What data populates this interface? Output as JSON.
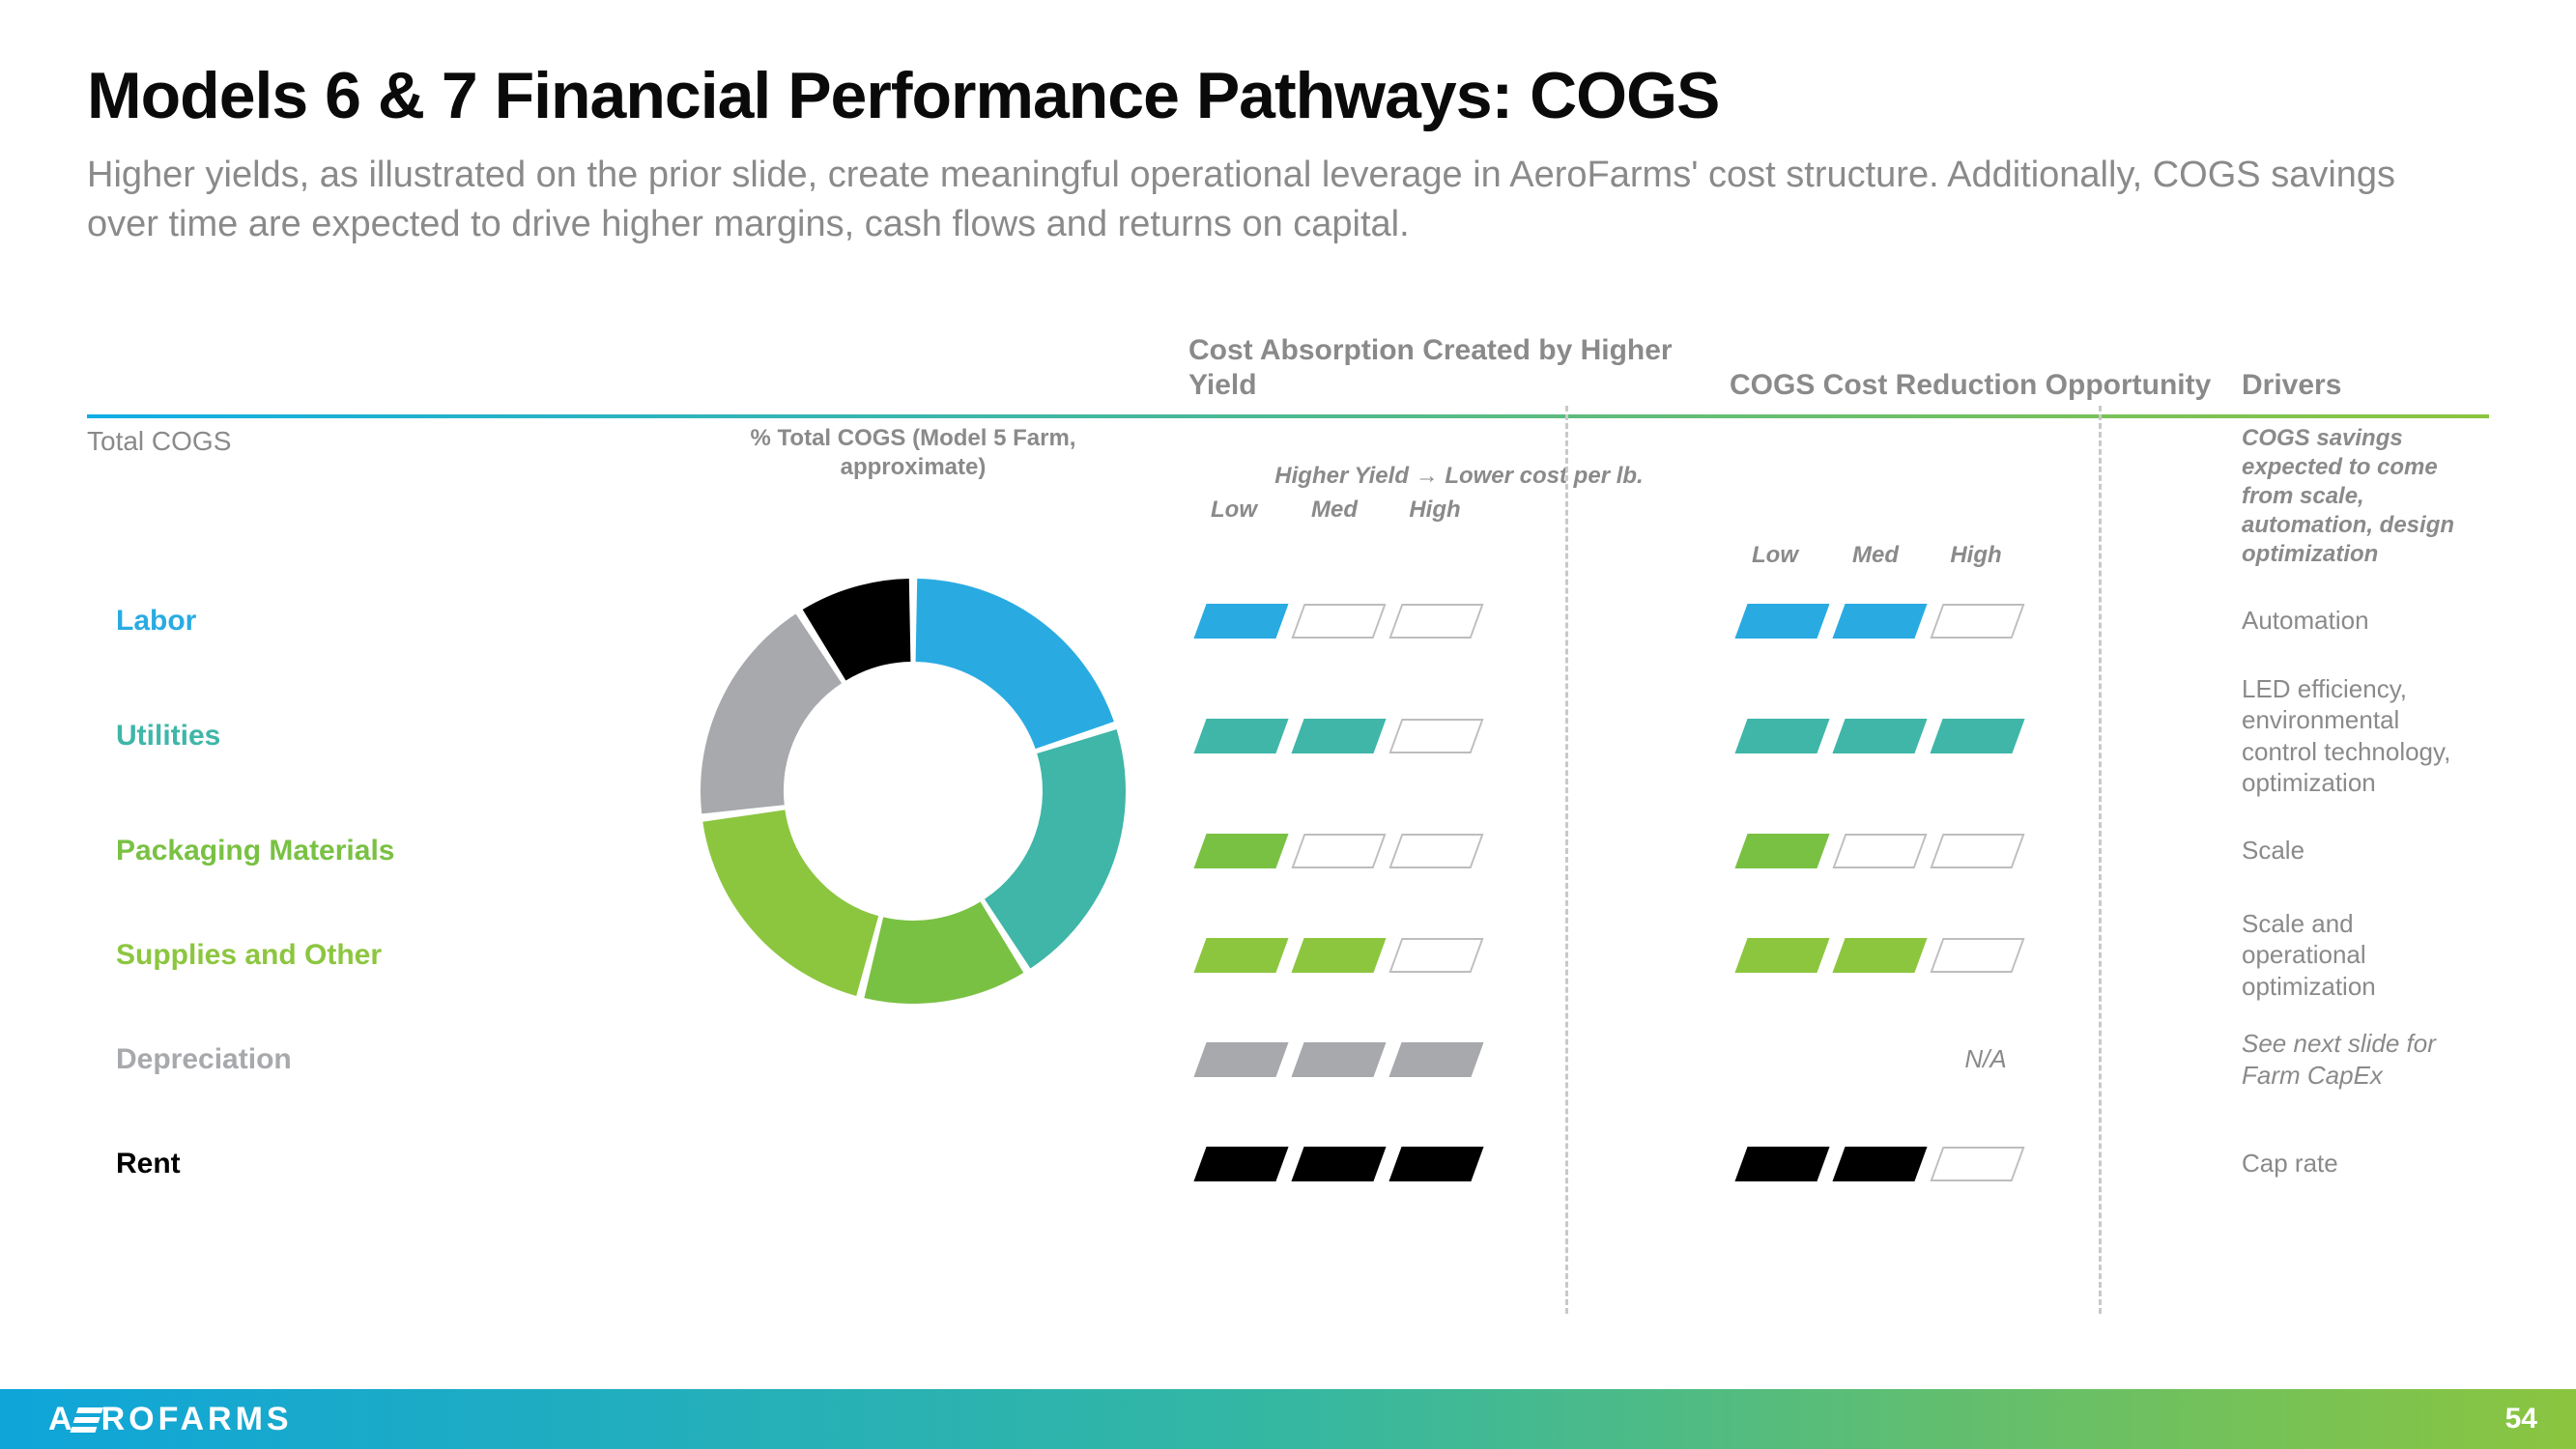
{
  "title": "Models 6 & 7 Financial Performance Pathways: COGS",
  "subtitle": "Higher yields, as illustrated on the prior slide, create meaningful operational leverage in AeroFarms' cost structure. Additionally, COGS savings over time are expected to drive higher margins, cash flows and returns on capital.",
  "columns": {
    "total_cogs": "Total COGS",
    "pct_note": "% Total COGS (Model 5 Farm, approximate)",
    "absorption_head": "Cost Absorption Created by Higher Yield",
    "absorption_sub": "Higher Yield → Lower cost per lb.",
    "reduction_head": "COGS Cost Reduction Opportunity",
    "drivers_head": "Drivers",
    "drivers_sub": "COGS savings expected to come from scale,  automation, design optimization",
    "lmh": {
      "low": "Low",
      "med": "Med",
      "high": "High"
    }
  },
  "divider_gradient": {
    "from": "#10aee5",
    "to": "#8bc53f"
  },
  "categories": [
    {
      "key": "labor",
      "label": "Labor",
      "color": "#29abe2",
      "absorption": 1,
      "reduction": 2,
      "driver": "Automation"
    },
    {
      "key": "utilities",
      "label": "Utilities",
      "color": "#3fb6a8",
      "absorption": 2,
      "reduction": 3,
      "driver": "LED efficiency, environmental control technology, optimization"
    },
    {
      "key": "packaging",
      "label": "Packaging Materials",
      "color": "#79c143",
      "absorption": 1,
      "reduction": 1,
      "driver": "Scale"
    },
    {
      "key": "supplies",
      "label": "Supplies and Other",
      "color": "#8cc63f",
      "absorption": 2,
      "reduction": 2,
      "driver": "Scale and operational optimization"
    },
    {
      "key": "deprec",
      "label": "Depreciation",
      "color": "#a7a9ac",
      "absorption": 3,
      "reduction": "na",
      "driver": "See next slide for Farm CapEx",
      "driver_italic": true
    },
    {
      "key": "rent",
      "label": "Rent",
      "color": "#000000",
      "absorption": 3,
      "reduction": 2,
      "driver": "Cap rate"
    }
  ],
  "na_text": "N/A",
  "donut": {
    "size": 440,
    "thickness": 86,
    "gap_deg": 2.2,
    "start_deg": -90,
    "background": "#ffffff",
    "slices": [
      {
        "key": "labor",
        "pct": 20,
        "color": "#29abe2"
      },
      {
        "key": "utilities",
        "pct": 21,
        "color": "#3fb6a8"
      },
      {
        "key": "packaging",
        "pct": 13,
        "color": "#79c143"
      },
      {
        "key": "supplies",
        "pct": 19,
        "color": "#8cc63f"
      },
      {
        "key": "deprec",
        "pct": 18,
        "color": "#a7a9ac"
      },
      {
        "key": "rent",
        "pct": 9,
        "color": "#000000"
      }
    ]
  },
  "footer": {
    "brand_left": "A",
    "brand_right": "ROFARMS",
    "page_number": "54",
    "gradient": {
      "from": "#0fa5d9",
      "mid": "#35b7a2",
      "to": "#8bc53f"
    }
  }
}
